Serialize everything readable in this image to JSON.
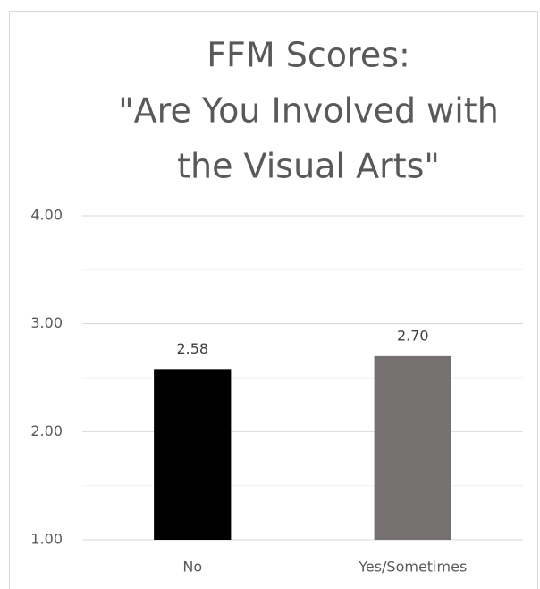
{
  "chart_data": {
    "type": "bar",
    "title": [
      "FFM Scores:",
      "\"Are You Involved with",
      "the Visual Arts\""
    ],
    "categories": [
      "No",
      "Yes/Sometimes"
    ],
    "values": [
      2.58,
      2.7
    ],
    "value_labels": [
      "2.58",
      "2.70"
    ],
    "colors": [
      "#000000",
      "#767171"
    ],
    "ylim": [
      1,
      4
    ],
    "yticks": [
      {
        "value": 1,
        "label": "1.00"
      },
      {
        "value": 2,
        "label": "2.00"
      },
      {
        "value": 3,
        "label": "3.00"
      },
      {
        "value": 4,
        "label": "4.00"
      }
    ],
    "minor_yticks": [
      1.5,
      2.5,
      3.5
    ],
    "grid": true
  }
}
